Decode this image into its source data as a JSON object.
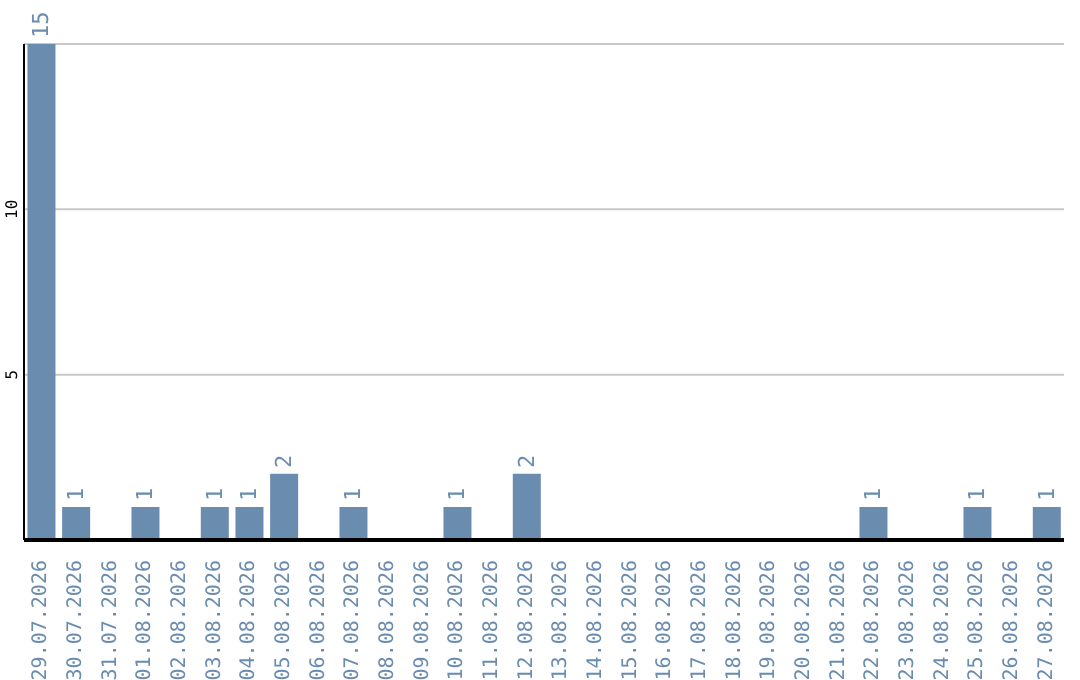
{
  "chart_data": {
    "type": "bar",
    "categories": [
      "29.07.2026",
      "30.07.2026",
      "31.07.2026",
      "01.08.2026",
      "02.08.2026",
      "03.08.2026",
      "04.08.2026",
      "05.08.2026",
      "06.08.2026",
      "07.08.2026",
      "08.08.2026",
      "09.08.2026",
      "10.08.2026",
      "11.08.2026",
      "12.08.2026",
      "13.08.2026",
      "14.08.2026",
      "15.08.2026",
      "16.08.2026",
      "17.08.2026",
      "18.08.2026",
      "19.08.2026",
      "20.08.2026",
      "21.08.2026",
      "22.08.2026",
      "23.08.2026",
      "24.08.2026",
      "25.08.2026",
      "26.08.2026",
      "27.08.2026"
    ],
    "values": [
      15,
      1,
      0,
      1,
      0,
      1,
      1,
      2,
      0,
      1,
      0,
      0,
      1,
      0,
      2,
      0,
      0,
      0,
      0,
      0,
      0,
      0,
      0,
      0,
      1,
      0,
      0,
      1,
      0,
      1
    ],
    "value_labels": [
      "15",
      "1",
      null,
      "1",
      null,
      "1",
      "1",
      "2",
      null,
      "1",
      null,
      null,
      "1",
      null,
      "2",
      null,
      null,
      null,
      null,
      null,
      null,
      null,
      null,
      null,
      "1",
      null,
      null,
      "1",
      null,
      "1"
    ],
    "color": "#6a8caf",
    "ylim": [
      0,
      15
    ],
    "yticks": [
      5,
      10
    ],
    "grid": "y"
  }
}
